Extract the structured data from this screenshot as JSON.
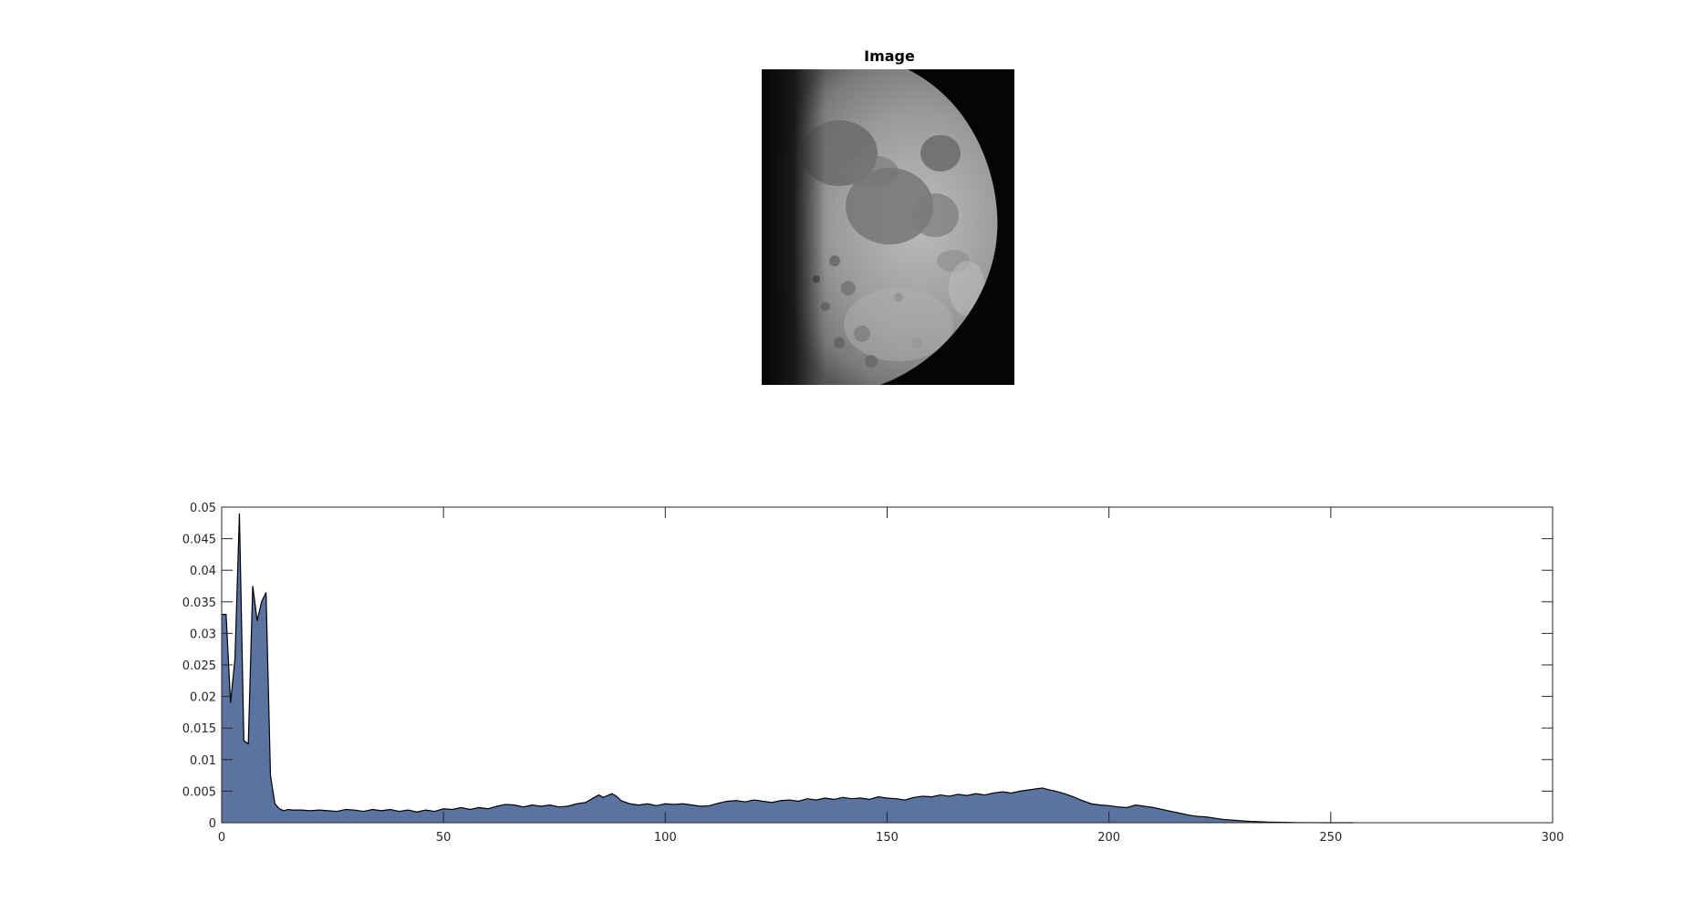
{
  "image_panel": {
    "title": "Image"
  },
  "chart_data": {
    "type": "area",
    "title": "",
    "xlabel": "",
    "ylabel": "",
    "xlim": [
      0,
      300
    ],
    "ylim": [
      0,
      0.05
    ],
    "x_ticks": [
      0,
      50,
      100,
      150,
      200,
      250,
      300
    ],
    "y_ticks": [
      0,
      0.005,
      0.01,
      0.015,
      0.02,
      0.025,
      0.03,
      0.035,
      0.04,
      0.045,
      0.05
    ],
    "x_tick_labels": [
      "0",
      "50",
      "100",
      "150",
      "200",
      "250",
      "300"
    ],
    "y_tick_labels": [
      "0",
      "0.005",
      "0.01",
      "0.015",
      "0.02",
      "0.025",
      "0.03",
      "0.035",
      "0.04",
      "0.045",
      "0.05"
    ],
    "grid": false,
    "fill_color": "#5b73a0",
    "line_color": "#000000",
    "series": [
      {
        "x": [
          0,
          1,
          2,
          3,
          4,
          5,
          6,
          7,
          8,
          9,
          10,
          11,
          12,
          13,
          14,
          15,
          16,
          18,
          20,
          22,
          24,
          26,
          28,
          30,
          32,
          34,
          36,
          38,
          40,
          42,
          44,
          46,
          48,
          50,
          52,
          54,
          56,
          58,
          60,
          62,
          64,
          66,
          68,
          70,
          72,
          74,
          76,
          78,
          80,
          82,
          84,
          85,
          86,
          88,
          89,
          90,
          92,
          94,
          96,
          98,
          100,
          102,
          104,
          106,
          108,
          110,
          112,
          114,
          116,
          118,
          120,
          122,
          124,
          126,
          128,
          130,
          132,
          134,
          136,
          138,
          140,
          142,
          144,
          146,
          148,
          150,
          152,
          154,
          156,
          158,
          160,
          162,
          164,
          166,
          168,
          170,
          172,
          174,
          176,
          178,
          180,
          182,
          184,
          185,
          186,
          188,
          190,
          192,
          194,
          196,
          198,
          200,
          202,
          204,
          206,
          208,
          210,
          212,
          214,
          216,
          218,
          220,
          222,
          224,
          226,
          228,
          230,
          232,
          234,
          236,
          238,
          240,
          242,
          245,
          250,
          255
        ],
        "y": [
          0.033,
          0.033,
          0.019,
          0.026,
          0.049,
          0.013,
          0.0125,
          0.0375,
          0.032,
          0.035,
          0.0365,
          0.0075,
          0.003,
          0.0022,
          0.0019,
          0.0021,
          0.002,
          0.002,
          0.0019,
          0.002,
          0.0019,
          0.0018,
          0.0021,
          0.002,
          0.0018,
          0.0021,
          0.0019,
          0.0021,
          0.0018,
          0.002,
          0.0017,
          0.002,
          0.0018,
          0.0022,
          0.0021,
          0.0024,
          0.0021,
          0.0024,
          0.0022,
          0.0026,
          0.0029,
          0.0028,
          0.0025,
          0.0028,
          0.0026,
          0.0028,
          0.0025,
          0.0026,
          0.003,
          0.0032,
          0.004,
          0.0044,
          0.004,
          0.0046,
          0.0042,
          0.0035,
          0.003,
          0.0028,
          0.003,
          0.0027,
          0.003,
          0.0029,
          0.003,
          0.0028,
          0.0026,
          0.0027,
          0.0031,
          0.0034,
          0.0035,
          0.0033,
          0.0036,
          0.0034,
          0.0032,
          0.0035,
          0.0036,
          0.0034,
          0.0038,
          0.0036,
          0.0039,
          0.0037,
          0.004,
          0.0038,
          0.0039,
          0.0037,
          0.0041,
          0.0039,
          0.0038,
          0.0036,
          0.004,
          0.0042,
          0.0041,
          0.0044,
          0.0042,
          0.0045,
          0.0043,
          0.0046,
          0.0044,
          0.0047,
          0.0049,
          0.0047,
          0.005,
          0.0052,
          0.0054,
          0.0055,
          0.0053,
          0.005,
          0.0046,
          0.0041,
          0.0035,
          0.003,
          0.0028,
          0.0027,
          0.0025,
          0.0024,
          0.0028,
          0.0026,
          0.0024,
          0.0021,
          0.0018,
          0.0015,
          0.0012,
          0.001,
          0.0009,
          0.0007,
          0.0005,
          0.0004,
          0.0003,
          0.0002,
          0.00015,
          0.0001,
          7e-05,
          5e-05,
          3e-05,
          1e-05,
          0.0,
          0.0
        ]
      }
    ]
  }
}
